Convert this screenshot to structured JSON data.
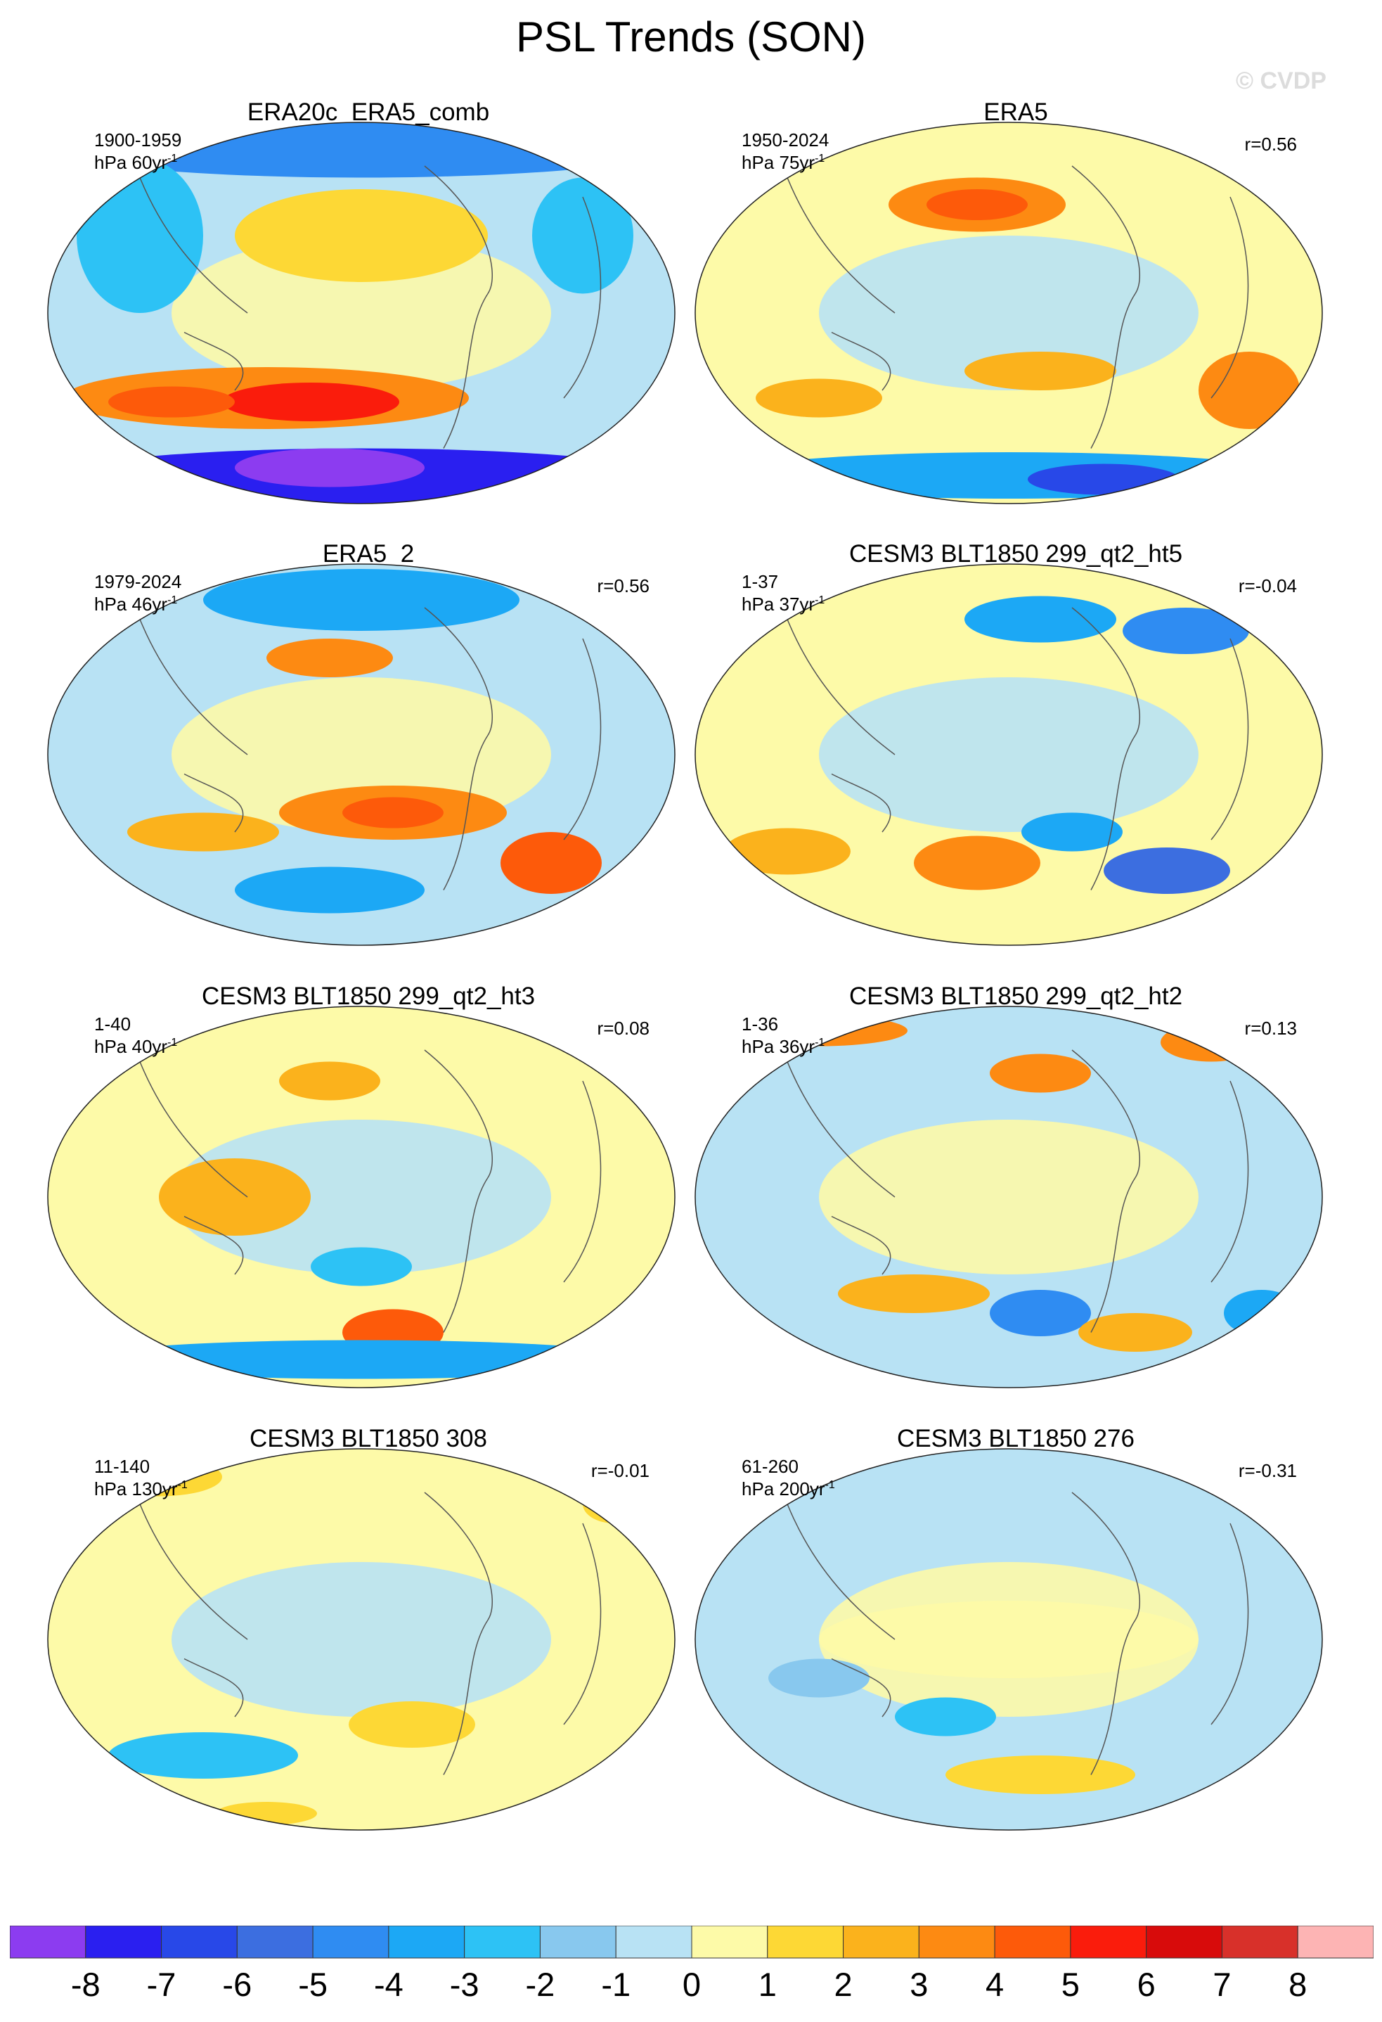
{
  "title": "PSL Trends (SON)",
  "credit": "© CVDP",
  "panels": [
    {
      "title": "ERA20c_ERA5_comb",
      "period": "1900-1959",
      "units": "hPa 60yr",
      "r": ""
    },
    {
      "title": "ERA5",
      "period": "1950-2024",
      "units": "hPa 75yr",
      "r": "r=0.56"
    },
    {
      "title": "ERA5_2",
      "period": "1979-2024",
      "units": "hPa 46yr",
      "r": "r=0.56"
    },
    {
      "title": "CESM3 BLT1850 299_qt2_ht5",
      "period": "1-37",
      "units": "hPa 37yr",
      "r": "r=-0.04"
    },
    {
      "title": "CESM3 BLT1850 299_qt2_ht3",
      "period": "1-40",
      "units": "hPa 40yr",
      "r": "r=0.08"
    },
    {
      "title": "CESM3 BLT1850 299_qt2_ht2",
      "period": "1-36",
      "units": "hPa 36yr",
      "r": "r=0.13"
    },
    {
      "title": "CESM3 BLT1850 308",
      "period": "11-140",
      "units": "hPa 130yr",
      "r": "r=-0.01"
    },
    {
      "title": "CESM3 BLT1850 276",
      "period": "61-260",
      "units": "hPa 200yr",
      "r": "r=-0.31"
    }
  ],
  "units_superscript": "-1",
  "colorbar": {
    "labels": [
      "-8",
      "-7",
      "-6",
      "-5",
      "-4",
      "-3",
      "-2",
      "-1",
      "0",
      "1",
      "2",
      "3",
      "4",
      "5",
      "6",
      "7",
      "8"
    ],
    "colors": [
      "#8c3cf0",
      "#2a1ff0",
      "#2848e8",
      "#3c6ee0",
      "#2f8cf2",
      "#1ca8f5",
      "#2dc2f5",
      "#88c8ee",
      "#b8e2f4",
      "#fdfaa8",
      "#fdd835",
      "#fbb21c",
      "#fd8a12",
      "#fd5a0a",
      "#fa1c0c",
      "#d80b0b",
      "#d8302a",
      "#fdb4b4"
    ]
  },
  "map_palette": {
    "ocean_neutral_neg": "#b8e2f4",
    "ocean_neutral_pos": "#fdfaa8"
  }
}
